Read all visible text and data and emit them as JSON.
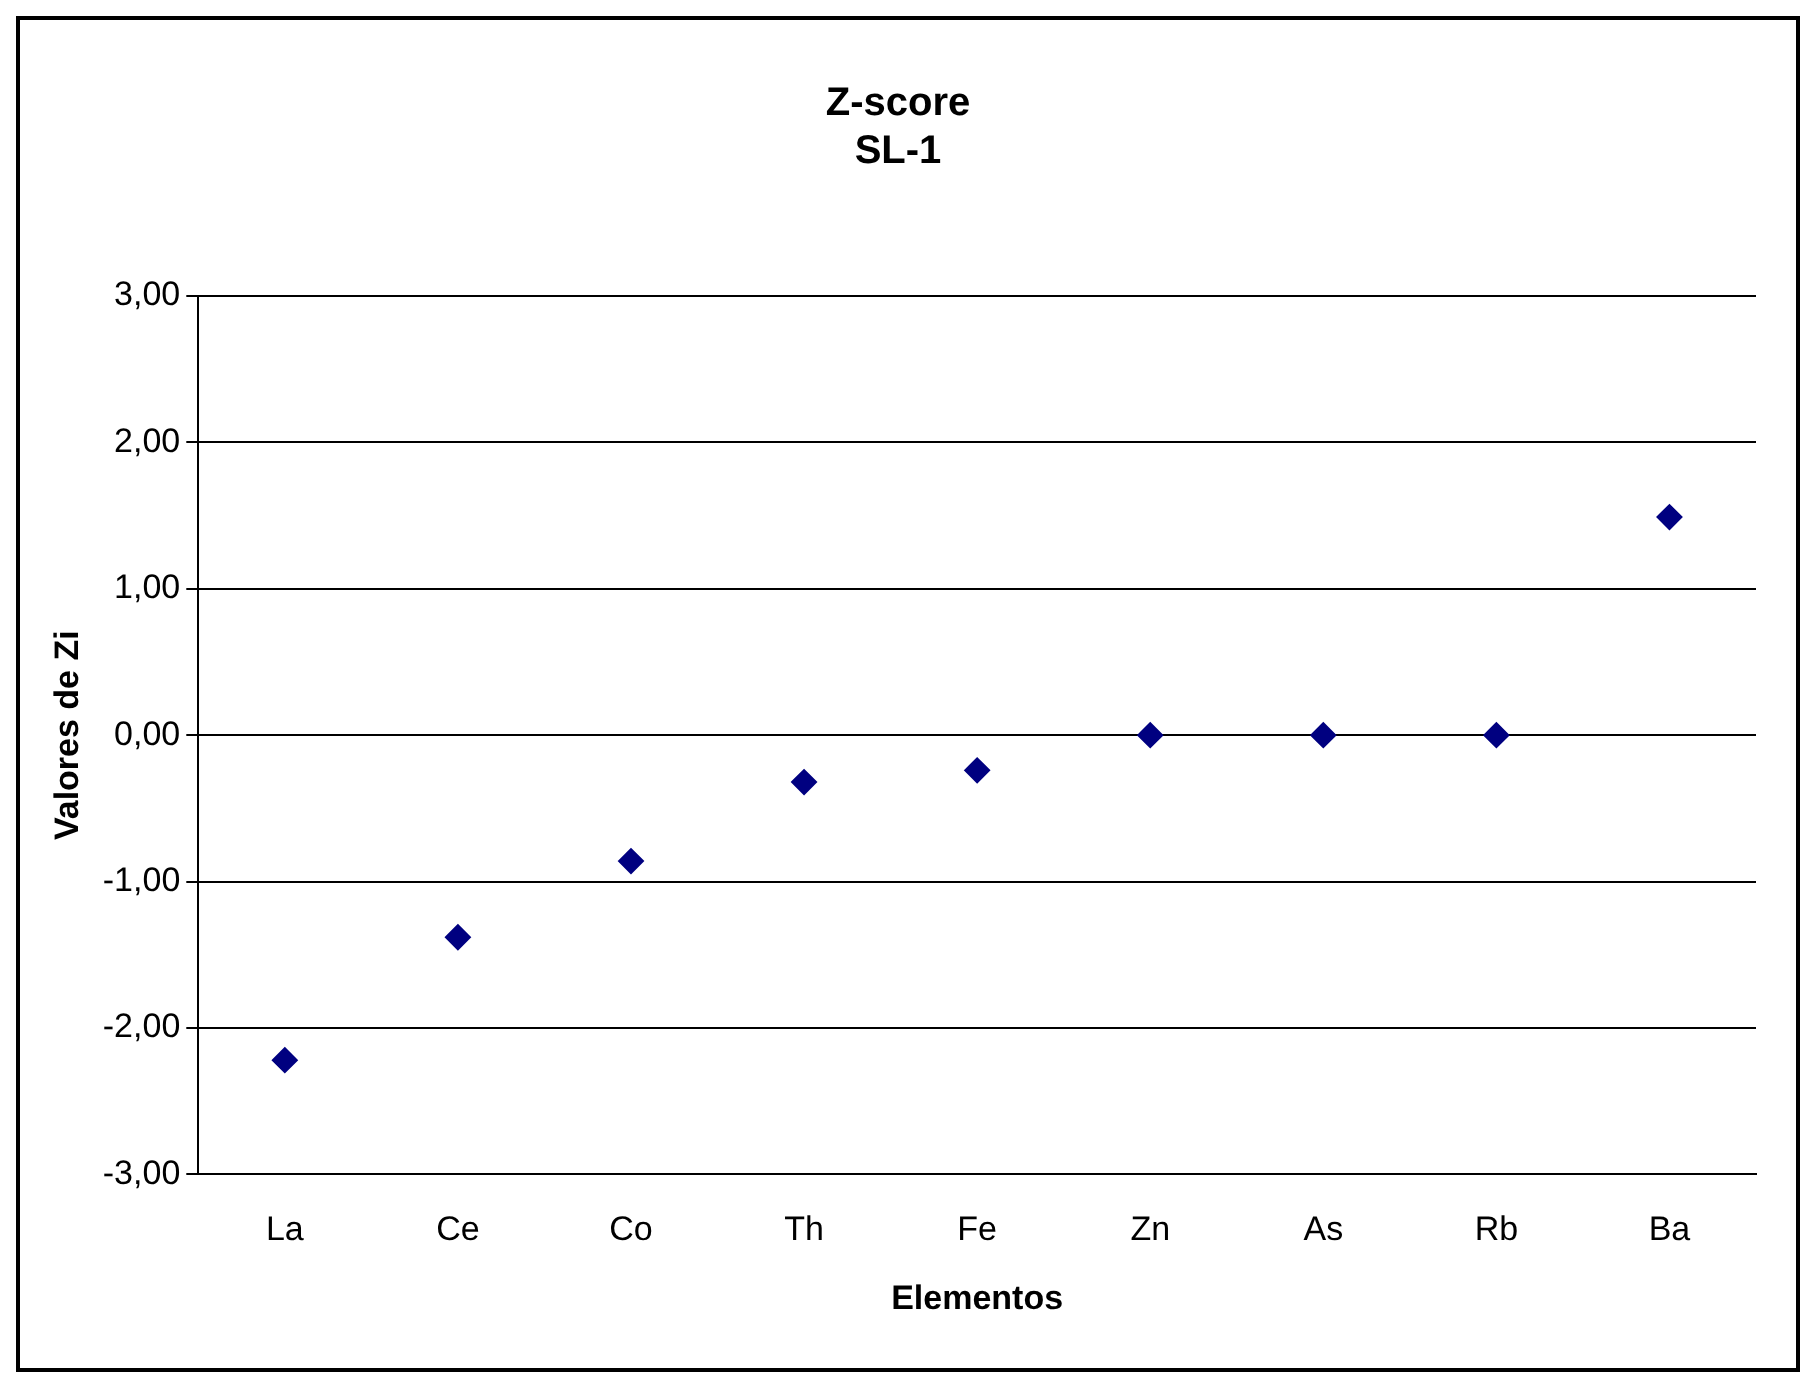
{
  "chart_data": {
    "type": "scatter",
    "title": "Z-score\nSL-1",
    "xlabel": "Elementos",
    "ylabel": "Valores de Zi",
    "categories": [
      "La",
      "Ce",
      "Co",
      "Th",
      "Fe",
      "Zn",
      "As",
      "Rb",
      "Ba"
    ],
    "series": [
      {
        "color": "#000080",
        "values": [
          -2.22,
          -1.38,
          -0.86,
          -0.32,
          -0.24,
          0.0,
          0.0,
          0.0,
          1.49
        ]
      }
    ],
    "ylim": [
      -3,
      3
    ],
    "yticks": [
      {
        "value": -3,
        "label": "-3,00"
      },
      {
        "value": -2,
        "label": "-2,00"
      },
      {
        "value": -1,
        "label": "-1,00"
      },
      {
        "value": 0,
        "label": "0,00"
      },
      {
        "value": 1,
        "label": "1,00"
      },
      {
        "value": 2,
        "label": "2,00"
      },
      {
        "value": 3,
        "label": "3,00"
      }
    ],
    "grid": "y",
    "legend": false,
    "marker": "diamond"
  }
}
